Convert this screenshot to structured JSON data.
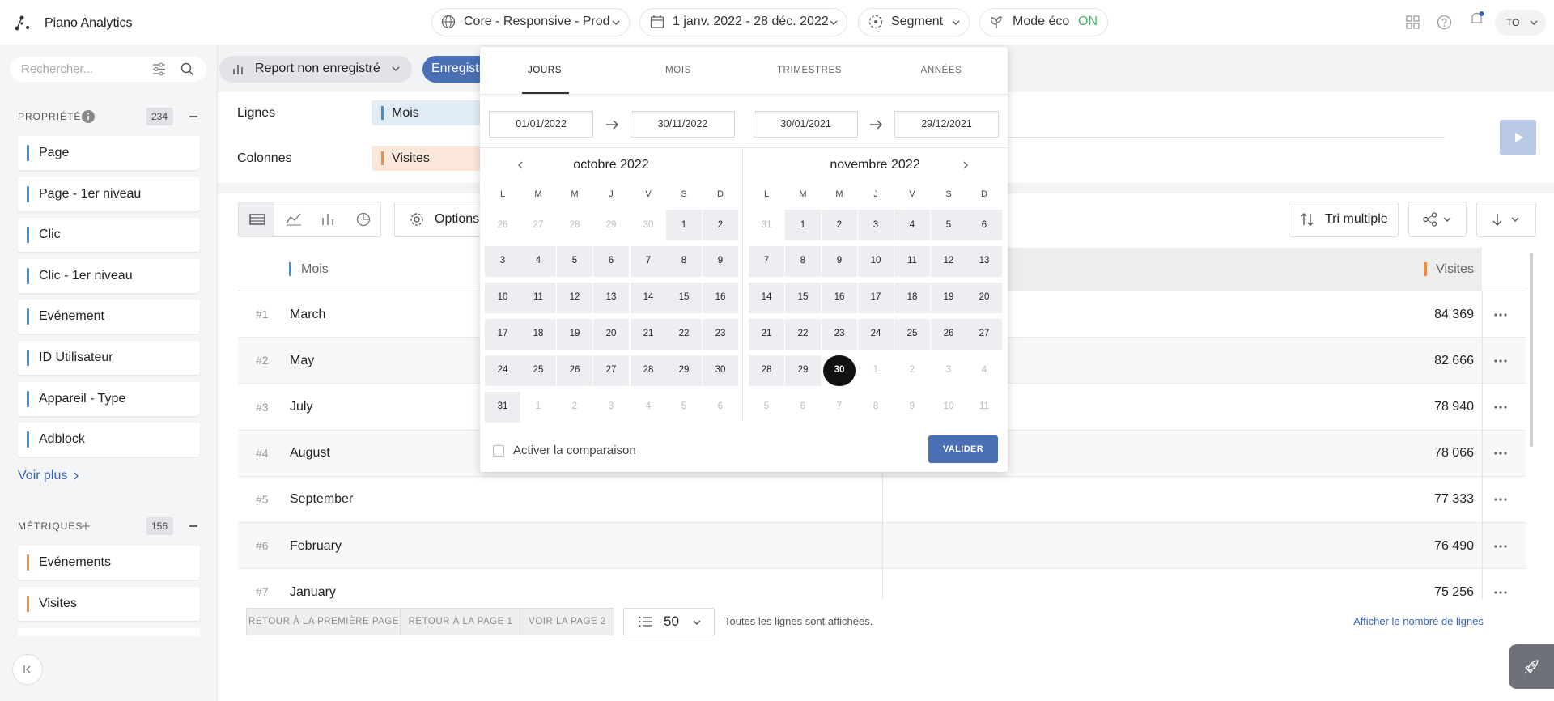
{
  "topbar": {
    "brand": "Piano Analytics",
    "site": "Core - Responsive - Prod",
    "period": "1 janv. 2022 - 28 déc. 2022",
    "segment": "Segment",
    "eco_label": "Mode éco",
    "eco_state": "ON",
    "user": "TO"
  },
  "toolbar": {
    "report": "Report non enregistré",
    "save": "Enregistrer"
  },
  "sidebar": {
    "search_placeholder": "Rechercher...",
    "properties": {
      "title": "PROPRIÉTÉS",
      "count": 234,
      "items": [
        "Page",
        "Page - 1er niveau",
        "Clic",
        "Clic - 1er niveau",
        "Evénement",
        "ID Utilisateur",
        "Appareil - Type",
        "Adblock"
      ]
    },
    "see_more": "Voir plus",
    "metrics": {
      "title": "MÉTRIQUES",
      "count": 156,
      "items": [
        "Evénements",
        "Visites"
      ]
    }
  },
  "config": {
    "rows_label": "Lignes",
    "rows_value": "Mois",
    "columns_label": "Colonnes",
    "columns_value": "Visites"
  },
  "table_toolbar": {
    "options": "Options",
    "sort": "Tri multiple"
  },
  "table": {
    "headers": [
      "Mois",
      "Visites"
    ],
    "rows": [
      [
        "#1",
        "March",
        "84 369"
      ],
      [
        "#2",
        "May",
        "82 666"
      ],
      [
        "#3",
        "July",
        "78 940"
      ],
      [
        "#4",
        "August",
        "78 066"
      ],
      [
        "#5",
        "September",
        "77 333"
      ],
      [
        "#6",
        "February",
        "76 490"
      ],
      [
        "#7",
        "January",
        "75 256"
      ]
    ]
  },
  "pagination": {
    "first_page": "RETOUR À LA PREMIÈRE PAGE",
    "page_1": "RETOUR À LA PAGE 1",
    "page_2": "VOIR LA PAGE 2",
    "page_size": 50,
    "status": "Toutes les lignes sont affichées.",
    "show_count": "Afficher le nombre de lignes"
  },
  "datepicker": {
    "tabs": [
      "JOURS",
      "MOIS",
      "TRIMESTRES",
      "ANNÉES"
    ],
    "range": [
      "01/01/2022",
      "30/11/2022"
    ],
    "compare_range": [
      "30/01/2021",
      "29/12/2021"
    ],
    "weekdays": [
      "L",
      "M",
      "M",
      "J",
      "V",
      "S",
      "D"
    ],
    "months": [
      {
        "title": "octobre 2022",
        "days": [
          26,
          27,
          28,
          29,
          30,
          1,
          2,
          3,
          4,
          5,
          6,
          7,
          8,
          9,
          10,
          11,
          12,
          13,
          14,
          15,
          16,
          17,
          18,
          19,
          20,
          21,
          22,
          23,
          24,
          25,
          26,
          27,
          28,
          29,
          30,
          31,
          1,
          2,
          3,
          4,
          5,
          6
        ]
      },
      {
        "title": "novembre 2022",
        "days": [
          31,
          1,
          2,
          3,
          4,
          5,
          6,
          7,
          8,
          9,
          10,
          11,
          12,
          13,
          14,
          15,
          16,
          17,
          18,
          19,
          20,
          21,
          22,
          23,
          24,
          25,
          26,
          27,
          28,
          29,
          30,
          1,
          2,
          3,
          4,
          5,
          6,
          7,
          8,
          9,
          10,
          11
        ]
      }
    ],
    "compare_label": "Activer la comparaison",
    "validate": "VALIDER"
  }
}
